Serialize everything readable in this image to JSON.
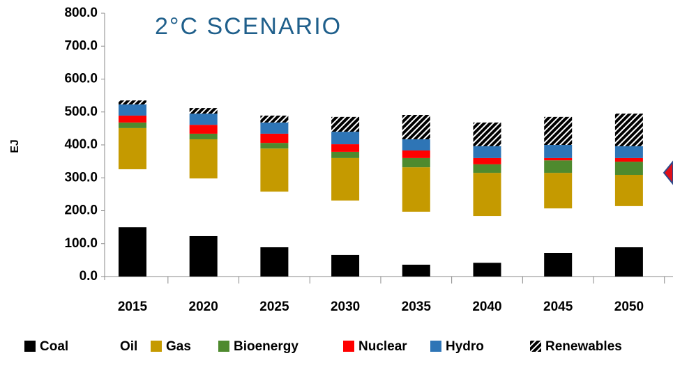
{
  "chart_data": {
    "type": "stacked_bar",
    "title": "2°C SCENARIO",
    "y_label": "EJ",
    "categories": [
      "2015",
      "2020",
      "2025",
      "2030",
      "2035",
      "2040",
      "2045",
      "2050"
    ],
    "series": [
      {
        "name": "Coal",
        "color": "#000000",
        "values": [
          150,
          123,
          89,
          66,
          36,
          42,
          72,
          89
        ]
      },
      {
        "name": "Oil",
        "color": "#ffffff",
        "values": [
          176,
          175,
          169,
          165,
          161,
          142,
          135,
          125
        ]
      },
      {
        "name": "Gas",
        "color": "#c59a00",
        "values": [
          125,
          119,
          131,
          129,
          135,
          131,
          108,
          95
        ]
      },
      {
        "name": "Bioenergy",
        "color": "#4e8a2e",
        "values": [
          17,
          17,
          17,
          19,
          28,
          26,
          38,
          40
        ]
      },
      {
        "name": "Nuclear",
        "color": "#ff0000",
        "values": [
          21,
          27,
          28,
          23,
          23,
          19,
          7,
          11
        ]
      },
      {
        "name": "Hydro",
        "color": "#2e75b6",
        "values": [
          34,
          34,
          34,
          38,
          34,
          36,
          40,
          36
        ]
      },
      {
        "name": "Renewables",
        "color": "#000000",
        "hatch": true,
        "values": [
          12,
          17,
          21,
          45,
          74,
          72,
          85,
          99
        ]
      }
    ],
    "ylim": [
      0,
      800
    ],
    "yticks": [
      {
        "value": 0,
        "label": "0.0"
      },
      {
        "value": 100,
        "label": "100.0"
      },
      {
        "value": 200,
        "label": "200.0"
      },
      {
        "value": 300,
        "label": "300.0"
      },
      {
        "value": 400,
        "label": "400.0"
      },
      {
        "value": 500,
        "label": "500.0"
      },
      {
        "value": 600,
        "label": "600.0"
      },
      {
        "value": 700,
        "label": "700.0"
      },
      {
        "value": 800,
        "label": "800.0"
      }
    ],
    "grid": false
  }
}
